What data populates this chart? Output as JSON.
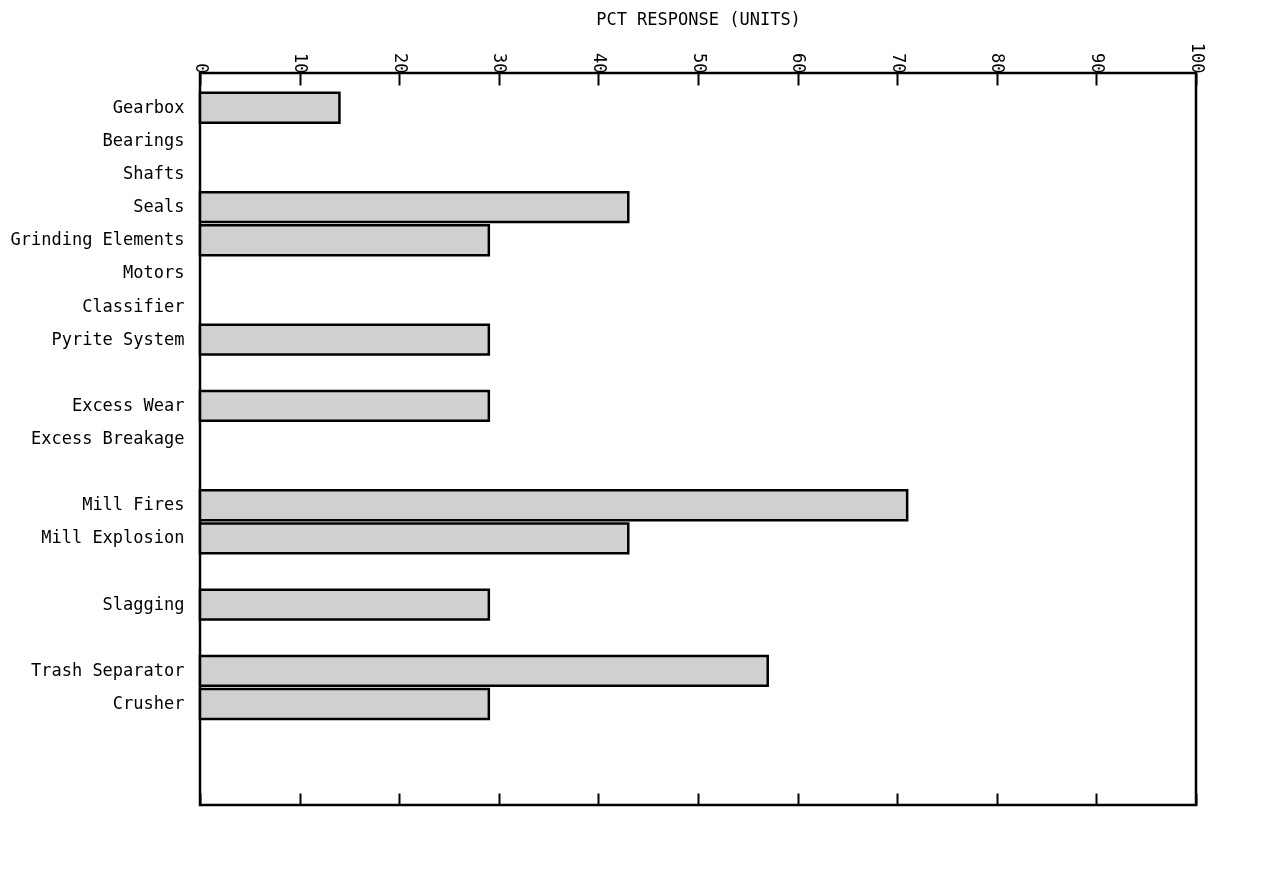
{
  "chart_data": {
    "type": "bar",
    "orientation": "horizontal",
    "xlabel": "PCT RESPONSE (UNITS)",
    "categories": [
      "Gearbox",
      "Bearings",
      "Shafts",
      "Seals",
      "Grinding Elements",
      "Motors",
      "Classifier",
      "Pyrite System",
      null,
      "Excess Wear",
      "Excess Breakage",
      null,
      "Mill Fires",
      "Mill Explosion",
      null,
      "Slagging",
      null,
      "Trash Separator",
      "Crusher",
      null,
      null
    ],
    "values": [
      14,
      null,
      null,
      43,
      29,
      null,
      null,
      29,
      null,
      29,
      null,
      null,
      71,
      43,
      null,
      29,
      null,
      57,
      29,
      null,
      null
    ],
    "color": "#d0d0d0",
    "xlim": [
      0,
      100
    ],
    "xticks": [
      0,
      10,
      20,
      30,
      40,
      50,
      60,
      70,
      80,
      90,
      100
    ],
    "grid": false
  }
}
